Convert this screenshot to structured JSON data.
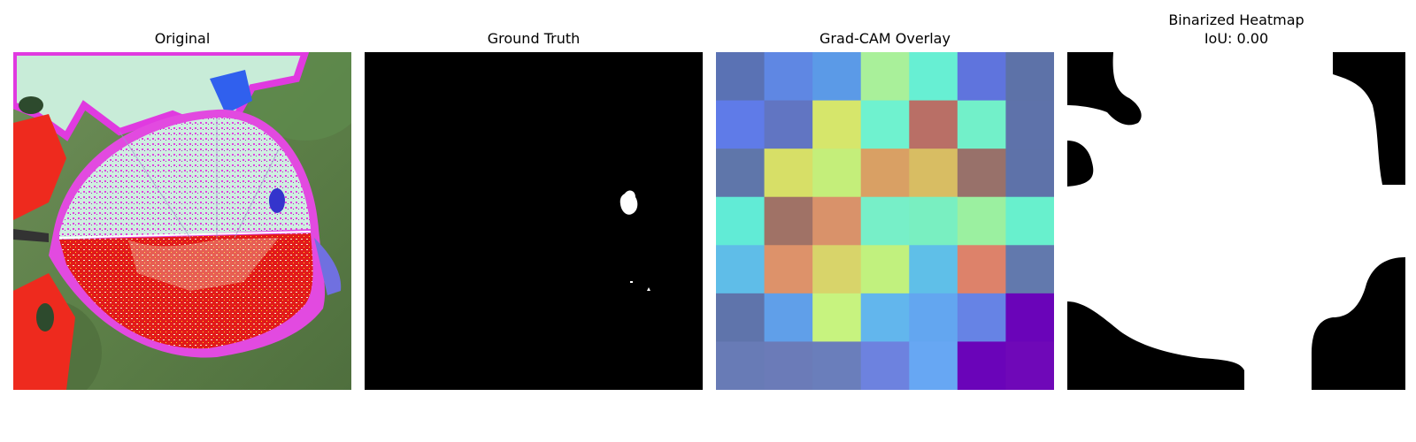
{
  "panels": [
    {
      "title": "Original",
      "image": "leaf-original"
    },
    {
      "title": "Ground Truth",
      "image": "ground-truth-mask"
    },
    {
      "title": "Grad-CAM Overlay",
      "image": "gradcam-overlay"
    },
    {
      "title": "Binarized Heatmap",
      "subtitle": "IoU: 0.00",
      "image": "binarized-heatmap"
    }
  ],
  "gradcam_grid": [
    [
      "#5a72b4",
      "#5f87e3",
      "#5b9ae7",
      "#a9f09a",
      "#67efd3",
      "#5f74dd",
      "#5d72a8"
    ],
    [
      "#5f7be8",
      "#6175c2",
      "#d6e66b",
      "#6ff2cf",
      "#b96f66",
      "#72f0c9",
      "#5e72aa"
    ],
    [
      "#5f76aa",
      "#d7df67",
      "#c4ee7a",
      "#d9a064",
      "#d8bd63",
      "#98716a",
      "#5e72a9"
    ],
    [
      "#61ebd6",
      "#a07266",
      "#d9926a",
      "#77efc8",
      "#79efc1",
      "#9bf0a0",
      "#68f0cd"
    ],
    [
      "#5fbde8",
      "#dd926a",
      "#d8d46a",
      "#c1f17e",
      "#5fbfe8",
      "#dd826a",
      "#6279ad"
    ],
    [
      "#5f74ab",
      "#609fe9",
      "#c7f37f",
      "#62b6ed",
      "#63a6f0",
      "#6683e5",
      "#6a04b9"
    ],
    [
      "#687bb6",
      "#6b7bb8",
      "#6a7ebb",
      "#6d82df",
      "#67a7f3",
      "#6a04b9",
      "#6f08b8"
    ]
  ],
  "colors": {
    "background": "#ffffff",
    "mask_bg": "#000000",
    "mask_fg": "#ffffff"
  }
}
